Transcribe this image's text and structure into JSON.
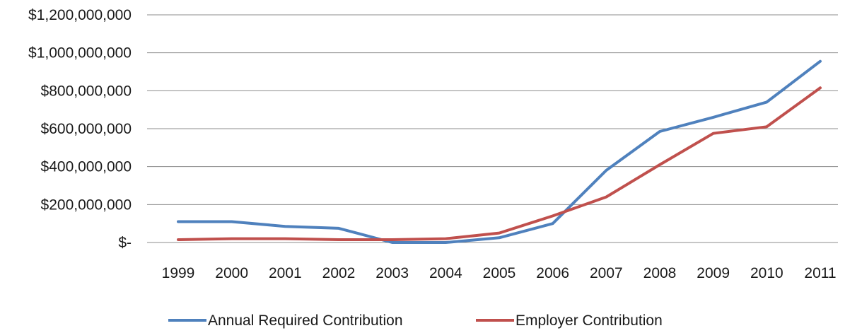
{
  "chart_data": {
    "type": "line",
    "title": "",
    "xlabel": "",
    "ylabel": "",
    "categories": [
      "1999",
      "2000",
      "2001",
      "2002",
      "2003",
      "2004",
      "2005",
      "2006",
      "2007",
      "2008",
      "2009",
      "2010",
      "2011"
    ],
    "ylim": [
      0,
      1200000000
    ],
    "yticks": [
      0,
      200000000,
      400000000,
      600000000,
      800000000,
      1000000000,
      1200000000
    ],
    "ytick_labels": [
      "$-",
      "$200,000,000",
      "$400,000,000",
      "$600,000,000",
      "$800,000,000",
      "$1,000,000,000",
      "$1,200,000,000"
    ],
    "grid": true,
    "legend_position": "bottom",
    "series": [
      {
        "name": "Annual Required Contribution",
        "color": "#4F81BD",
        "values": [
          110000000,
          110000000,
          85000000,
          75000000,
          0,
          0,
          25000000,
          100000000,
          380000000,
          585000000,
          660000000,
          740000000,
          955000000
        ]
      },
      {
        "name": "Employer Contribution",
        "color": "#C0504D",
        "values": [
          15000000,
          20000000,
          20000000,
          15000000,
          15000000,
          20000000,
          50000000,
          140000000,
          240000000,
          410000000,
          575000000,
          610000000,
          815000000
        ]
      }
    ]
  }
}
